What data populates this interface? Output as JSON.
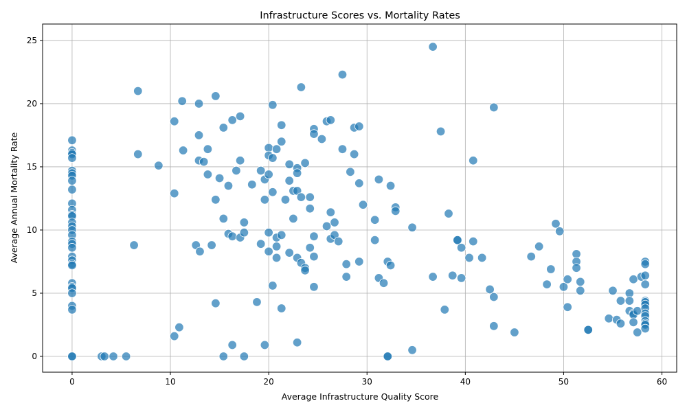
{
  "chart_data": {
    "type": "scatter",
    "title": "Infrastructure Scores vs. Mortality Rates",
    "xlabel": "Average Infrastructure Quality Score",
    "ylabel": "Average Annual Mortality Rate",
    "xlim": [
      -3,
      61.5
    ],
    "ylim": [
      -1.25,
      26.3
    ],
    "xticks": [
      0,
      10,
      20,
      30,
      40,
      50,
      60
    ],
    "yticks": [
      0,
      5,
      10,
      15,
      20,
      25
    ],
    "grid": true,
    "color": "#1f77b4",
    "points": [
      [
        0,
        17.1
      ],
      [
        0,
        16.3
      ],
      [
        0,
        16.1
      ],
      [
        0,
        16.0
      ],
      [
        0,
        15.7
      ],
      [
        0,
        14.7
      ],
      [
        0,
        14.5
      ],
      [
        0,
        14.3
      ],
      [
        0,
        13.9
      ],
      [
        0,
        13.2
      ],
      [
        0,
        12.1
      ],
      [
        0,
        11.6
      ],
      [
        0,
        11.2
      ],
      [
        0,
        11.1
      ],
      [
        0,
        10.6
      ],
      [
        0,
        10.3
      ],
      [
        0,
        10.0
      ],
      [
        0,
        9.6
      ],
      [
        0,
        9.1
      ],
      [
        0,
        8.9
      ],
      [
        0,
        8.6
      ],
      [
        0,
        7.9
      ],
      [
        0,
        7.6
      ],
      [
        0,
        7.3
      ],
      [
        0,
        7.2
      ],
      [
        0,
        5.8
      ],
      [
        0,
        5.5
      ],
      [
        0,
        5.4
      ],
      [
        0,
        5.0
      ],
      [
        0,
        4.0
      ],
      [
        0,
        3.7
      ],
      [
        0,
        0
      ],
      [
        0,
        0
      ],
      [
        3.0,
        0
      ],
      [
        3.3,
        0
      ],
      [
        4.2,
        0
      ],
      [
        5.5,
        0
      ],
      [
        6.3,
        8.8
      ],
      [
        6.7,
        21.0
      ],
      [
        6.7,
        16.0
      ],
      [
        8.8,
        15.1
      ],
      [
        10.4,
        18.6
      ],
      [
        10.4,
        12.9
      ],
      [
        10.4,
        1.6
      ],
      [
        10.9,
        2.3
      ],
      [
        11.2,
        20.2
      ],
      [
        11.3,
        16.3
      ],
      [
        12.6,
        8.8
      ],
      [
        12.9,
        20.0
      ],
      [
        12.9,
        17.5
      ],
      [
        12.9,
        15.5
      ],
      [
        13.0,
        8.3
      ],
      [
        13.4,
        15.4
      ],
      [
        13.8,
        16.4
      ],
      [
        13.8,
        14.4
      ],
      [
        14.2,
        8.8
      ],
      [
        14.6,
        20.6
      ],
      [
        14.6,
        12.4
      ],
      [
        14.6,
        4.2
      ],
      [
        15.0,
        14.1
      ],
      [
        15.4,
        18.1
      ],
      [
        15.4,
        10.9
      ],
      [
        15.4,
        0
      ],
      [
        15.9,
        13.5
      ],
      [
        15.9,
        9.7
      ],
      [
        16.3,
        18.7
      ],
      [
        16.3,
        9.5
      ],
      [
        16.3,
        0.9
      ],
      [
        16.7,
        14.7
      ],
      [
        17.1,
        19.0
      ],
      [
        17.1,
        15.5
      ],
      [
        17.1,
        9.4
      ],
      [
        17.5,
        10.6
      ],
      [
        17.5,
        9.8
      ],
      [
        17.5,
        0
      ],
      [
        18.3,
        13.6
      ],
      [
        18.8,
        4.3
      ],
      [
        19.2,
        14.7
      ],
      [
        19.2,
        8.9
      ],
      [
        19.6,
        14.0
      ],
      [
        19.6,
        12.4
      ],
      [
        19.6,
        0.9
      ],
      [
        20.0,
        16.5
      ],
      [
        20.0,
        15.9
      ],
      [
        20.0,
        14.4
      ],
      [
        20.0,
        9.8
      ],
      [
        20.0,
        8.3
      ],
      [
        20.4,
        19.9
      ],
      [
        20.4,
        15.7
      ],
      [
        20.4,
        13.0
      ],
      [
        20.4,
        5.6
      ],
      [
        20.8,
        16.4
      ],
      [
        20.8,
        9.4
      ],
      [
        20.8,
        8.7
      ],
      [
        20.8,
        7.8
      ],
      [
        21.3,
        18.3
      ],
      [
        21.3,
        17.0
      ],
      [
        21.3,
        9.6
      ],
      [
        21.3,
        3.8
      ],
      [
        21.7,
        12.4
      ],
      [
        22.1,
        15.2
      ],
      [
        22.1,
        13.9
      ],
      [
        22.1,
        8.2
      ],
      [
        22.5,
        13.1
      ],
      [
        22.5,
        10.9
      ],
      [
        22.9,
        14.9
      ],
      [
        22.9,
        14.5
      ],
      [
        22.9,
        13.1
      ],
      [
        22.9,
        7.8
      ],
      [
        22.9,
        1.1
      ],
      [
        23.3,
        21.3
      ],
      [
        23.3,
        12.6
      ],
      [
        23.3,
        7.4
      ],
      [
        23.7,
        15.3
      ],
      [
        23.7,
        7.0
      ],
      [
        23.7,
        6.8
      ],
      [
        24.2,
        12.6
      ],
      [
        24.2,
        11.7
      ],
      [
        24.2,
        8.6
      ],
      [
        24.6,
        18.0
      ],
      [
        24.6,
        17.6
      ],
      [
        24.6,
        9.5
      ],
      [
        24.6,
        7.9
      ],
      [
        24.6,
        5.5
      ],
      [
        25.4,
        17.2
      ],
      [
        25.9,
        18.6
      ],
      [
        25.9,
        10.3
      ],
      [
        26.3,
        18.7
      ],
      [
        26.3,
        11.4
      ],
      [
        26.3,
        9.3
      ],
      [
        26.7,
        10.6
      ],
      [
        26.7,
        9.6
      ],
      [
        27.1,
        9.1
      ],
      [
        27.5,
        22.3
      ],
      [
        27.5,
        16.4
      ],
      [
        27.9,
        7.3
      ],
      [
        27.9,
        6.3
      ],
      [
        28.3,
        14.6
      ],
      [
        28.7,
        18.1
      ],
      [
        28.7,
        16.0
      ],
      [
        29.2,
        18.2
      ],
      [
        29.2,
        13.7
      ],
      [
        29.2,
        7.5
      ],
      [
        29.6,
        12.0
      ],
      [
        30.8,
        10.8
      ],
      [
        30.8,
        9.2
      ],
      [
        31.2,
        14.0
      ],
      [
        31.2,
        6.2
      ],
      [
        31.7,
        5.8
      ],
      [
        32.1,
        7.5
      ],
      [
        32.1,
        0
      ],
      [
        32.1,
        0
      ],
      [
        32.4,
        13.5
      ],
      [
        32.4,
        7.2
      ],
      [
        32.9,
        11.8
      ],
      [
        32.9,
        11.5
      ],
      [
        34.6,
        10.2
      ],
      [
        34.6,
        0.5
      ],
      [
        36.7,
        24.5
      ],
      [
        36.7,
        6.3
      ],
      [
        37.5,
        17.8
      ],
      [
        37.9,
        3.7
      ],
      [
        38.3,
        11.3
      ],
      [
        38.7,
        6.4
      ],
      [
        39.2,
        9.2
      ],
      [
        39.2,
        9.2
      ],
      [
        39.6,
        8.6
      ],
      [
        39.6,
        6.2
      ],
      [
        40.4,
        7.8
      ],
      [
        40.8,
        15.5
      ],
      [
        40.8,
        9.1
      ],
      [
        41.7,
        7.8
      ],
      [
        42.5,
        5.3
      ],
      [
        42.9,
        19.7
      ],
      [
        42.9,
        4.7
      ],
      [
        42.9,
        2.4
      ],
      [
        45.0,
        1.9
      ],
      [
        46.7,
        7.9
      ],
      [
        47.5,
        8.7
      ],
      [
        48.3,
        5.7
      ],
      [
        48.7,
        6.9
      ],
      [
        49.2,
        10.5
      ],
      [
        49.6,
        9.9
      ],
      [
        50.0,
        5.5
      ],
      [
        50.4,
        6.1
      ],
      [
        50.4,
        3.9
      ],
      [
        51.3,
        8.1
      ],
      [
        51.3,
        7.5
      ],
      [
        51.3,
        7.0
      ],
      [
        51.7,
        5.9
      ],
      [
        51.7,
        5.2
      ],
      [
        52.5,
        2.1
      ],
      [
        52.5,
        2.1
      ],
      [
        54.6,
        3.0
      ],
      [
        55.0,
        5.2
      ],
      [
        55.4,
        2.9
      ],
      [
        55.8,
        4.4
      ],
      [
        55.8,
        2.6
      ],
      [
        56.7,
        5.0
      ],
      [
        56.7,
        4.4
      ],
      [
        56.7,
        3.6
      ],
      [
        57.1,
        6.1
      ],
      [
        57.1,
        3.4
      ],
      [
        57.1,
        3.3
      ],
      [
        57.1,
        2.7
      ],
      [
        57.5,
        3.6
      ],
      [
        57.5,
        1.9
      ],
      [
        57.9,
        6.3
      ],
      [
        58.3,
        7.5
      ],
      [
        58.3,
        7.3
      ],
      [
        58.3,
        6.4
      ],
      [
        58.3,
        5.7
      ],
      [
        58.3,
        4.4
      ],
      [
        58.3,
        4.3
      ],
      [
        58.3,
        4.1
      ],
      [
        58.3,
        3.8
      ],
      [
        58.3,
        3.4
      ],
      [
        58.3,
        3.2
      ],
      [
        58.3,
        2.8
      ],
      [
        58.3,
        2.6
      ],
      [
        58.3,
        2.5
      ],
      [
        58.3,
        2.2
      ]
    ]
  }
}
